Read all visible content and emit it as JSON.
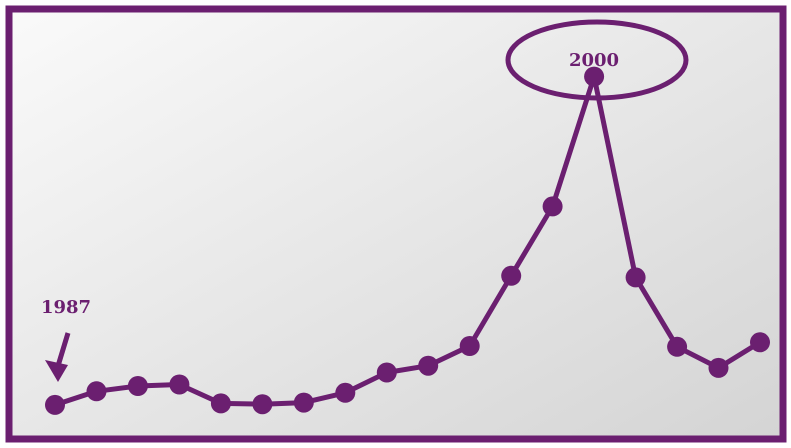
{
  "colors": {
    "accent": "#6b1f70",
    "background_light": "#fafafa",
    "background_dark": "#d4d4d4"
  },
  "chart_data": {
    "type": "line",
    "title": "",
    "xlabel": "",
    "ylabel": "",
    "x": [
      1987,
      1988,
      1989,
      1990,
      1991,
      1992,
      1993,
      1994,
      1995,
      1996,
      1997,
      1998,
      1999,
      2000,
      2001,
      2002,
      2003,
      2004
    ],
    "series": [
      {
        "values": [
          20,
          38,
          45,
          47,
          22,
          21,
          23,
          36,
          63,
          72,
          98,
          191,
          283,
          455,
          189,
          97,
          69,
          103
        ]
      }
    ],
    "xlim": [
      1987,
      2004
    ],
    "ylim": [
      0,
      530
    ],
    "grid": false,
    "annotations": [
      {
        "text": "1987",
        "x": 1987,
        "style": "arrow-label"
      },
      {
        "text": "2000",
        "x": 2000,
        "style": "circled-label"
      }
    ]
  }
}
